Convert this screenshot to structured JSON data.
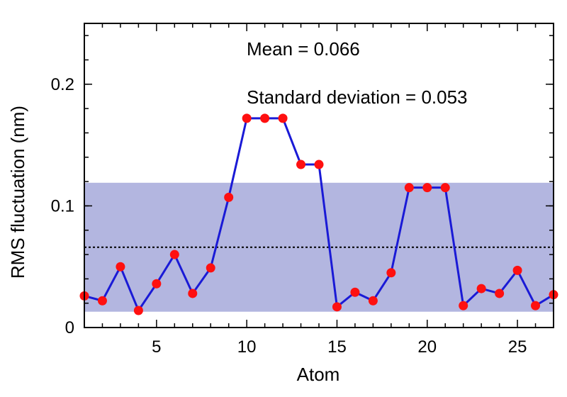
{
  "chart_data": {
    "type": "line",
    "xlabel": "Atom",
    "ylabel": "RMS fluctuation (nm)",
    "xlim": [
      1,
      27
    ],
    "ylim": [
      0,
      0.25
    ],
    "x_ticks": [
      5,
      10,
      15,
      20,
      25
    ],
    "x_tick_labels": [
      "5",
      "10",
      "15",
      "20",
      "25"
    ],
    "y_ticks": [
      0,
      0.1,
      0.2
    ],
    "y_tick_labels": [
      "0",
      "0.1",
      "0.2"
    ],
    "grid": false,
    "series": [
      {
        "name": "RMS fluctuation",
        "color": "#1a1ad6",
        "marker_color": "#ff1010",
        "x": [
          1,
          2,
          3,
          4,
          5,
          6,
          7,
          8,
          9,
          10,
          11,
          12,
          13,
          14,
          15,
          16,
          17,
          18,
          19,
          20,
          21,
          22,
          23,
          24,
          25,
          26,
          27
        ],
        "values": [
          0.026,
          0.022,
          0.05,
          0.014,
          0.036,
          0.06,
          0.028,
          0.049,
          0.107,
          0.172,
          0.172,
          0.172,
          0.134,
          0.134,
          0.017,
          0.029,
          0.022,
          0.045,
          0.115,
          0.115,
          0.115,
          0.018,
          0.032,
          0.028,
          0.047,
          0.018,
          0.027
        ]
      }
    ],
    "mean_line": {
      "value": 0.066,
      "color": "#000000",
      "style": "dotted"
    },
    "std_band": {
      "lower": 0.013,
      "upper": 0.119,
      "color": "#b3b6e0"
    },
    "annotations": {
      "mean_text": "Mean = 0.066",
      "std_text": "Standard deviation = 0.053"
    }
  }
}
